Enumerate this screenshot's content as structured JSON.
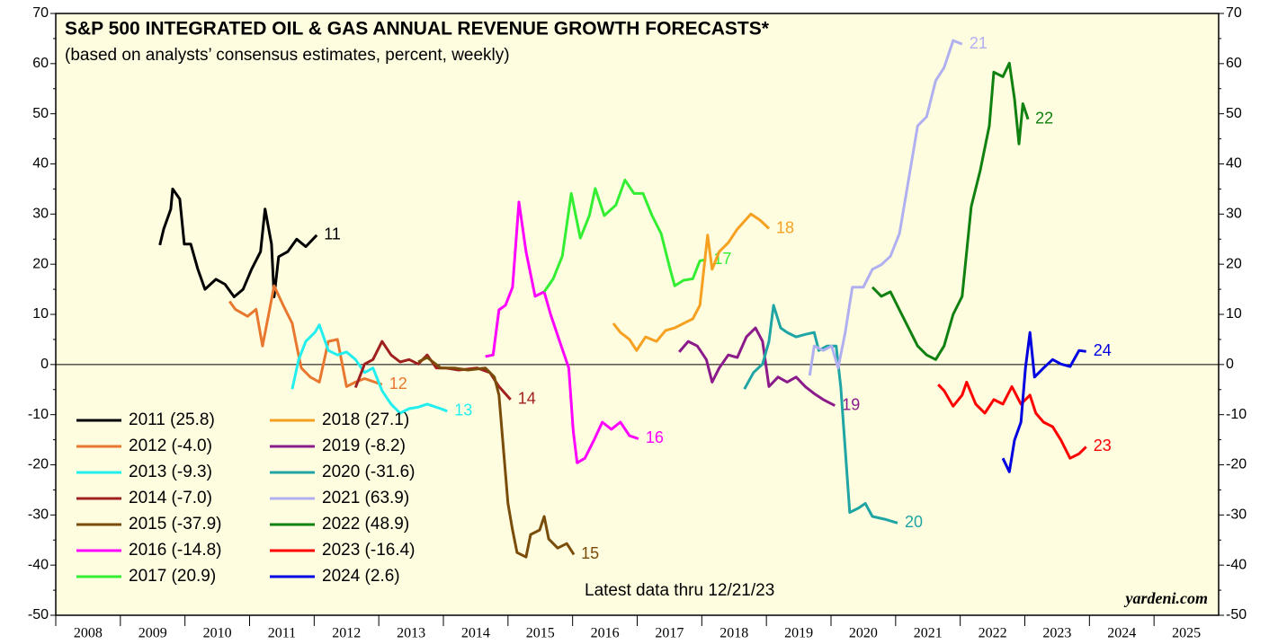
{
  "chart_data": {
    "type": "line",
    "title": "S&P 500 INTEGRATED OIL & GAS ANNUAL REVENUE GROWTH FORECASTS*",
    "subtitle": "(based on analysts’ consensus estimates, percent, weekly)",
    "annotation": "Latest data thru 12/21/23",
    "source": "yardeni.com",
    "xlim": [
      2008,
      2026
    ],
    "xticks": [
      {
        "value": 2008,
        "label": "2008"
      },
      {
        "value": 2009,
        "label": "2009"
      },
      {
        "value": 2010,
        "label": "2010"
      },
      {
        "value": 2011,
        "label": "2011"
      },
      {
        "value": 2012,
        "label": "2012"
      },
      {
        "value": 2013,
        "label": "2013"
      },
      {
        "value": 2014,
        "label": "2014"
      },
      {
        "value": 2015,
        "label": "2015"
      },
      {
        "value": 2016,
        "label": "2016"
      },
      {
        "value": 2017,
        "label": "2017"
      },
      {
        "value": 2018,
        "label": "2018"
      },
      {
        "value": 2019,
        "label": "2019"
      },
      {
        "value": 2020,
        "label": "2020"
      },
      {
        "value": 2021,
        "label": "2021"
      },
      {
        "value": 2022,
        "label": "2022"
      },
      {
        "value": 2023,
        "label": "2023"
      },
      {
        "value": 2024,
        "label": "2024"
      },
      {
        "value": 2025,
        "label": "2025"
      }
    ],
    "ylim": [
      -50,
      70
    ],
    "yticks": [
      -50,
      -40,
      -30,
      -20,
      -10,
      0,
      10,
      20,
      30,
      40,
      50,
      60,
      70
    ],
    "zero_line": true,
    "legend": "lower left",
    "series": [
      {
        "name": "2011 (25.8)",
        "end_label": "11",
        "color": "#000000",
        "x": [
          2009.61,
          2009.67,
          2009.78,
          2009.81,
          2009.92,
          2009.99,
          2010.09,
          2010.2,
          2010.31,
          2010.48,
          2010.62,
          2010.76,
          2010.9,
          2011.03,
          2011.17,
          2011.24,
          2011.34,
          2011.38,
          2011.45,
          2011.59,
          2011.73,
          2011.87,
          2012.04
        ],
        "values": [
          23.8,
          27,
          31,
          35,
          33,
          24,
          24,
          19,
          15,
          17,
          16,
          13.5,
          15,
          19,
          22.5,
          31,
          24,
          13.5,
          21.5,
          22.5,
          25,
          23.5,
          25.8
        ]
      },
      {
        "name": "2012 (-4.0)",
        "end_label": "12",
        "color": "#e87830",
        "x": [
          2010.69,
          2010.78,
          2010.97,
          2011.1,
          2011.2,
          2011.31,
          2011.38,
          2011.52,
          2011.66,
          2011.73,
          2011.8,
          2011.94,
          2012.08,
          2012.22,
          2012.36,
          2012.5,
          2012.64,
          2012.78,
          2013.05
        ],
        "values": [
          12.6,
          11,
          9.6,
          11,
          3.7,
          11,
          15.7,
          11.8,
          8.2,
          3.7,
          -0.7,
          -2.5,
          -3.5,
          4.6,
          5,
          -4.4,
          -3.5,
          -2.8,
          -4.0
        ]
      },
      {
        "name": "2013 (-9.3)",
        "end_label": "13",
        "color": "#22eeee",
        "x": [
          2011.66,
          2011.76,
          2011.87,
          2012.01,
          2012.08,
          2012.22,
          2012.36,
          2012.5,
          2012.64,
          2012.78,
          2012.91,
          2013.05,
          2013.19,
          2013.33,
          2013.47,
          2013.61,
          2013.75,
          2013.96,
          2014.06
        ],
        "values": [
          -4.9,
          1,
          4.6,
          6.4,
          7.9,
          2.8,
          1.9,
          2.5,
          1,
          -1.6,
          -0.7,
          -5.2,
          -7.9,
          -9.7,
          -8.8,
          -8.5,
          -7.9,
          -8.8,
          -9.3
        ]
      },
      {
        "name": "2014 (-7.0)",
        "end_label": "14",
        "color": "#a02020",
        "x": [
          2012.64,
          2012.78,
          2012.91,
          2013.05,
          2013.19,
          2013.33,
          2013.47,
          2013.61,
          2013.75,
          2013.89,
          2014.03,
          2014.24,
          2014.52,
          2014.72,
          2014.86,
          2015.04
        ],
        "values": [
          -4.6,
          0.1,
          1,
          4.6,
          1.9,
          0.5,
          1,
          0.1,
          1.9,
          -0.7,
          -0.7,
          -1.1,
          -0.7,
          -1.6,
          -4.4,
          -7.0
        ]
      },
      {
        "name": "2015 (-37.9)",
        "end_label": "15",
        "color": "#7a4c0a",
        "x": [
          2013.61,
          2013.75,
          2013.96,
          2014.17,
          2014.38,
          2014.65,
          2014.79,
          2014.86,
          2014.93,
          2015.0,
          2015.07,
          2015.14,
          2015.28,
          2015.35,
          2015.49,
          2015.56,
          2015.63,
          2015.77,
          2015.91,
          2016.02
        ],
        "values": [
          0.5,
          1.4,
          -0.7,
          -0.7,
          -1.1,
          -0.7,
          -2.5,
          -6.1,
          -16.9,
          -27.7,
          -33,
          -37.5,
          -38.4,
          -33.9,
          -33,
          -30.3,
          -34.8,
          -36.6,
          -35.7,
          -37.9
        ]
      },
      {
        "name": "2016 (-14.8)",
        "end_label": "16",
        "color": "#ff00ff",
        "x": [
          2014.65,
          2014.77,
          2014.86,
          2014.96,
          2015.07,
          2015.17,
          2015.28,
          2015.42,
          2015.56,
          2015.66,
          2015.8,
          2015.94,
          2016.01,
          2016.07,
          2016.19,
          2016.33,
          2016.46,
          2016.6,
          2016.74,
          2016.88,
          2017.02
        ],
        "values": [
          1.6,
          1.9,
          10.9,
          11.8,
          15.4,
          32.4,
          22.5,
          13.6,
          14.5,
          10,
          4.6,
          -0.7,
          -13.3,
          -19.6,
          -18.7,
          -15.1,
          -11.5,
          -12.9,
          -11.5,
          -14.2,
          -14.8
        ]
      },
      {
        "name": "2017 (20.9)",
        "end_label": "17",
        "color": "#33ee33",
        "x": [
          2015.56,
          2015.7,
          2015.84,
          2015.98,
          2016.12,
          2016.26,
          2016.35,
          2016.49,
          2016.67,
          2016.81,
          2016.95,
          2017.09,
          2017.23,
          2017.37,
          2017.51,
          2017.58,
          2017.72,
          2017.86,
          2017.97,
          2018.07
        ],
        "values": [
          14.5,
          17.1,
          21.6,
          34.1,
          25.2,
          29.7,
          35.1,
          29.7,
          31.8,
          36.8,
          34.1,
          34.1,
          29.7,
          26.1,
          19,
          15.7,
          16.8,
          17.1,
          20.7,
          20.9
        ]
      },
      {
        "name": "2018 (27.1)",
        "end_label": "18",
        "color": "#f5a020",
        "x": [
          2016.63,
          2016.74,
          2016.88,
          2016.99,
          2017.13,
          2017.3,
          2017.44,
          2017.58,
          2017.72,
          2017.86,
          2017.97,
          2018.09,
          2018.16,
          2018.27,
          2018.41,
          2018.55,
          2018.76,
          2018.9,
          2019.04
        ],
        "values": [
          8.2,
          6.4,
          5,
          2.8,
          5.5,
          4.6,
          6.8,
          7.3,
          8.2,
          9.1,
          11.8,
          25.8,
          19,
          22.5,
          24.3,
          27,
          30,
          28.8,
          27.1
        ]
      },
      {
        "name": "2019 (-8.2)",
        "end_label": "19",
        "color": "#8b1a8b",
        "x": [
          2017.65,
          2017.79,
          2017.93,
          2018.07,
          2018.16,
          2018.27,
          2018.41,
          2018.55,
          2018.69,
          2018.83,
          2018.94,
          2019.04,
          2019.18,
          2019.32,
          2019.46,
          2019.6,
          2019.74,
          2019.88,
          2020.06
        ],
        "values": [
          2.5,
          4.6,
          3.7,
          1,
          -3.5,
          -0.7,
          1.9,
          1.4,
          5.5,
          7.3,
          4.6,
          -4.4,
          -2.5,
          -3.5,
          -2.5,
          -4.4,
          -5.8,
          -7,
          -8.2
        ]
      },
      {
        "name": "2020 (-31.6)",
        "end_label": "20",
        "color": "#20a5a5",
        "x": [
          2018.66,
          2018.8,
          2018.94,
          2019.04,
          2019.11,
          2019.22,
          2019.32,
          2019.46,
          2019.6,
          2019.74,
          2019.81,
          2019.94,
          2020.08,
          2020.15,
          2020.22,
          2020.29,
          2020.43,
          2020.53,
          2020.64,
          2020.85,
          2021.03
        ],
        "values": [
          -4.9,
          -1.6,
          0.1,
          4.6,
          11.8,
          7.3,
          6.4,
          5.5,
          6,
          6.4,
          2.8,
          3.7,
          3.7,
          -4.4,
          -16.9,
          -29.5,
          -28.6,
          -27.7,
          -30.3,
          -30.9,
          -31.6
        ]
      },
      {
        "name": "2021 (63.9)",
        "end_label": "21",
        "color": "#b0b0f0",
        "x": [
          2019.67,
          2019.74,
          2019.88,
          2020.01,
          2020.11,
          2020.22,
          2020.33,
          2020.5,
          2020.64,
          2020.78,
          2020.92,
          2021.06,
          2021.2,
          2021.34,
          2021.48,
          2021.62,
          2021.75,
          2021.89,
          2022.03
        ],
        "values": [
          -2.2,
          3.7,
          2.8,
          3.7,
          -0.7,
          6.4,
          15.4,
          15.4,
          19,
          19.9,
          21.6,
          26.1,
          36.8,
          47.6,
          49.4,
          56.6,
          59.2,
          64.6,
          63.9
        ]
      },
      {
        "name": "2022 (48.9)",
        "end_label": "22",
        "color": "#108010",
        "x": [
          2020.64,
          2020.78,
          2020.92,
          2021.06,
          2021.2,
          2021.34,
          2021.48,
          2021.62,
          2021.75,
          2021.89,
          2022.03,
          2022.17,
          2022.31,
          2022.45,
          2022.52,
          2022.66,
          2022.76,
          2022.84,
          2022.91,
          2022.97,
          2023.05
        ],
        "values": [
          15.4,
          13.6,
          14.5,
          10.9,
          7.3,
          3.7,
          1.9,
          1,
          3.7,
          10,
          13.6,
          31.5,
          38.7,
          47.6,
          58.3,
          57.4,
          60.1,
          53,
          44,
          52,
          48.9
        ]
      },
      {
        "name": "2023 (-16.4)",
        "end_label": "23",
        "color": "#ff0000",
        "x": [
          2021.66,
          2021.75,
          2021.89,
          2022.03,
          2022.1,
          2022.24,
          2022.38,
          2022.52,
          2022.66,
          2022.8,
          2022.94,
          2023.08,
          2023.17,
          2023.29,
          2023.43,
          2023.56,
          2023.7,
          2023.84,
          2023.95
        ],
        "values": [
          -4,
          -5.2,
          -8.3,
          -6.1,
          -3.5,
          -7.9,
          -9.7,
          -7,
          -7.9,
          -4.4,
          -7.9,
          -6.1,
          -9.7,
          -11.5,
          -12.4,
          -15.1,
          -18.7,
          -17.8,
          -16.4
        ]
      },
      {
        "name": "2024 (2.6)",
        "end_label": "24",
        "color": "#0000e0",
        "x": [
          2022.66,
          2022.76,
          2022.84,
          2022.94,
          2023.01,
          2023.08,
          2023.15,
          2023.29,
          2023.43,
          2023.56,
          2023.7,
          2023.84,
          2023.95
        ],
        "values": [
          -18.7,
          -21.4,
          -15.1,
          -11.5,
          -0.7,
          6.4,
          -2.5,
          -0.7,
          1,
          0.1,
          -0.4,
          2.8,
          2.6
        ]
      }
    ]
  }
}
